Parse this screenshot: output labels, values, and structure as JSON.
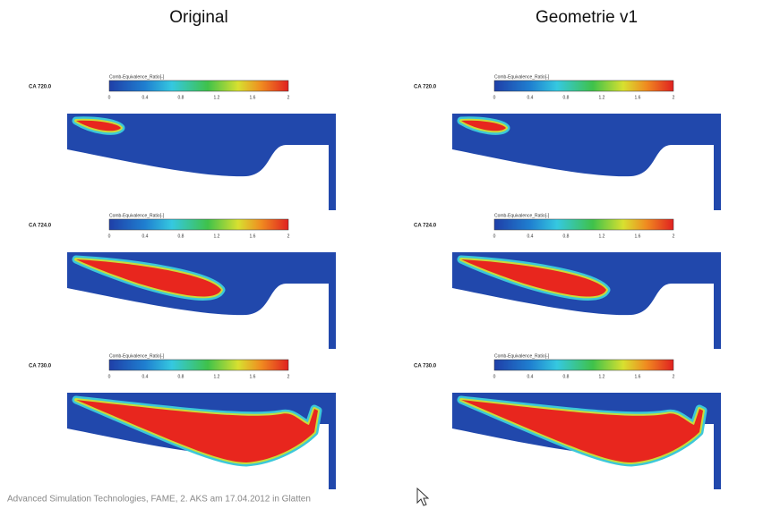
{
  "titles": [
    "Original",
    "Geometrie v1"
  ],
  "colorbar": {
    "title": "Comb-Equivalence_Ratio[-]",
    "ticks": [
      0,
      0.4,
      0.8,
      1.2,
      1.6,
      2
    ]
  },
  "rows": [
    {
      "label": "CA 720.0"
    },
    {
      "label": "CA 724.0"
    },
    {
      "label": "CA 730.0"
    }
  ],
  "footer": "Advanced Simulation Technologies, FAME, 2. AKS am 17.04.2012 in Glatten"
}
